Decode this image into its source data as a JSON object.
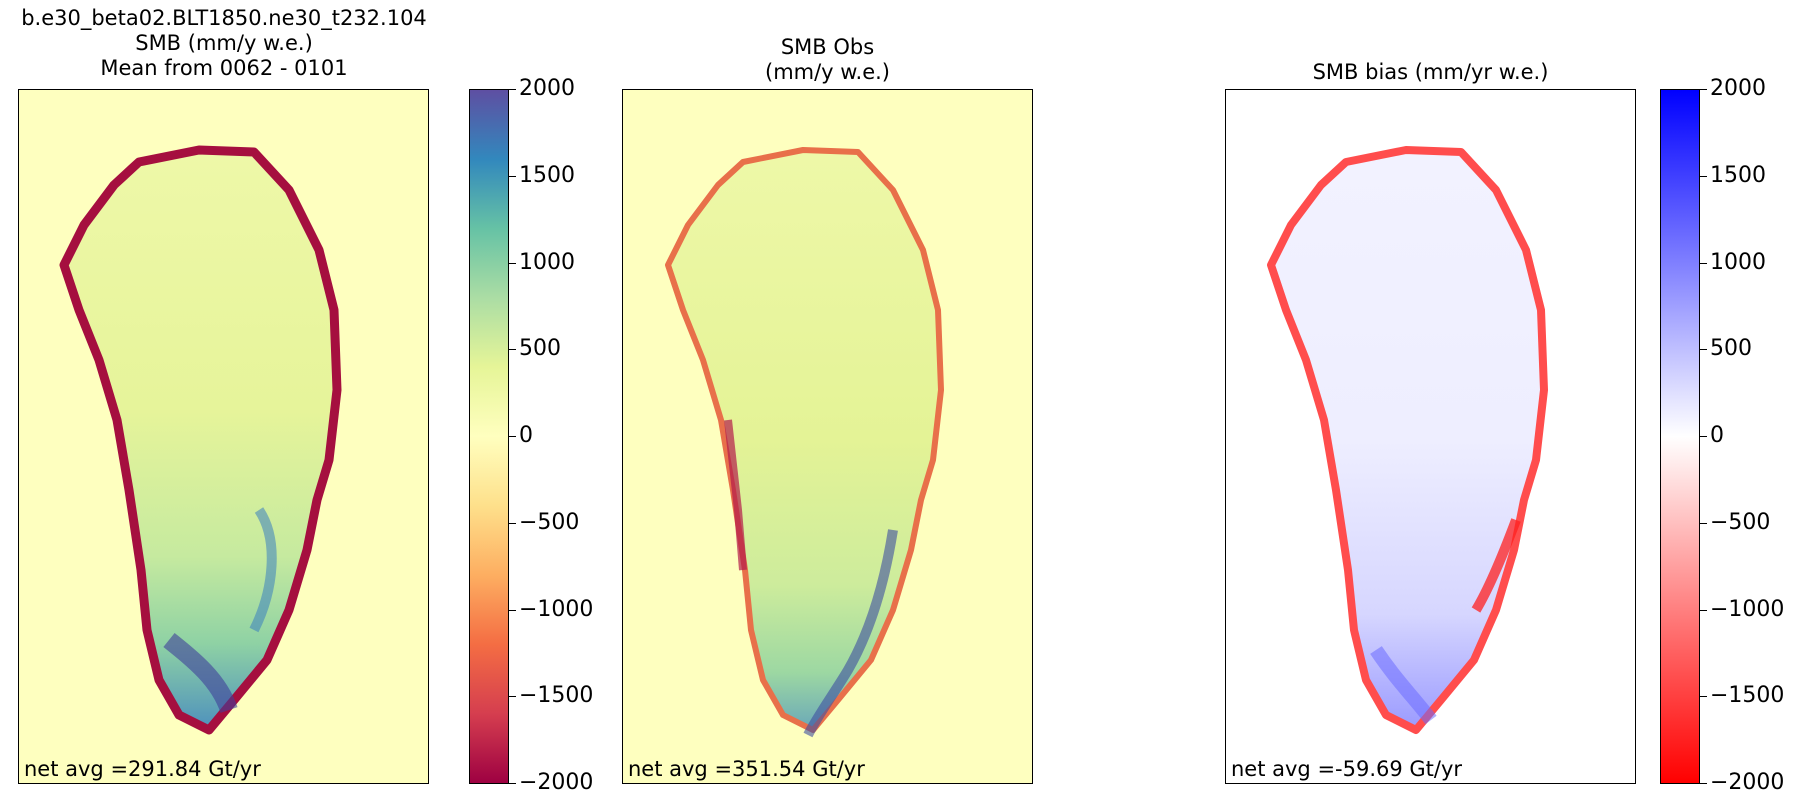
{
  "figure": {
    "panels": [
      {
        "title_lines": [
          "b.e30_beta02.BLT1850.ne30_t232.104",
          "SMB (mm/y w.e.)",
          "Mean from 0062 - 0101"
        ],
        "annotation": "net avg =291.84 Gt/yr",
        "background": "#feffbf",
        "colormap": "Spectral",
        "has_colorbar": true
      },
      {
        "title_lines": [
          "SMB Obs",
          "(mm/y w.e.)"
        ],
        "annotation": "net avg =351.54 Gt/yr",
        "background": "#feffbf",
        "colormap": "Spectral",
        "has_colorbar": false
      },
      {
        "title_lines": [
          "SMB bias (mm/yr w.e.)"
        ],
        "annotation": "net avg =-59.69 Gt/yr",
        "background": "#ffffff",
        "colormap": "bwr_r",
        "has_colorbar": true
      }
    ],
    "colorbar1": {
      "ticks": [
        "2000",
        "1500",
        "1000",
        "500",
        "0",
        "−500",
        "−1000",
        "−1500",
        "−2000"
      ],
      "range": [
        -2000,
        2000
      ],
      "stops": [
        "#9e0142",
        "#d53e4f",
        "#f46d43",
        "#fdae61",
        "#fee08b",
        "#ffffbf",
        "#e6f598",
        "#abdda4",
        "#66c2a5",
        "#3288bd",
        "#5e4fa2"
      ]
    },
    "colorbar2": {
      "ticks": [
        "2000",
        "1500",
        "1000",
        "500",
        "0",
        "−500",
        "−1000",
        "−1500",
        "−2000"
      ],
      "range": [
        -2000,
        2000
      ],
      "stops": [
        "#ff0000",
        "#ffffff",
        "#0000ff"
      ]
    }
  },
  "chart_data": [
    {
      "type": "heatmap",
      "title": "b.e30_beta02.BLT1850.ne30_t232.104 SMB (mm/y w.e.) Mean from 0062 - 0101",
      "variable": "SMB (mm/y w.e.)",
      "colorbar_range": [
        -2000,
        2000
      ],
      "colorbar_ticks": [
        -2000,
        -1500,
        -1000,
        -500,
        0,
        500,
        1000,
        1500,
        2000
      ],
      "net_avg_Gt_per_yr": 291.84
    },
    {
      "type": "heatmap",
      "title": "SMB Obs (mm/y w.e.)",
      "colorbar_range": [
        -2000,
        2000
      ],
      "net_avg_Gt_per_yr": 351.54
    },
    {
      "type": "heatmap",
      "title": "SMB bias (mm/yr w.e.)",
      "colorbar_range": [
        -2000,
        2000
      ],
      "colorbar_ticks": [
        -2000,
        -1500,
        -1000,
        -500,
        0,
        500,
        1000,
        1500,
        2000
      ],
      "net_avg_Gt_per_yr": -59.69
    }
  ]
}
